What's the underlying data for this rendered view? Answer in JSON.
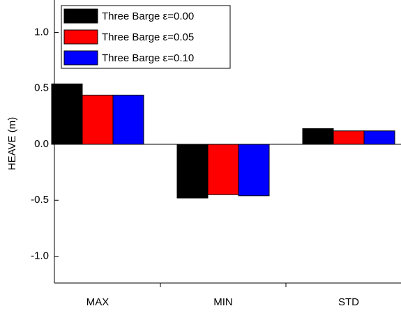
{
  "chart_data": {
    "type": "bar",
    "y_label": "HEAVE (m)",
    "categories": [
      "MAX",
      "MIN",
      "STD"
    ],
    "series": [
      {
        "name": "Three Barge ε=0.00",
        "color": "#000000",
        "values": [
          0.54,
          -0.48,
          0.14
        ]
      },
      {
        "name": "Three Barge ε=0.05",
        "color": "#ff0000",
        "values": [
          0.44,
          -0.45,
          0.12
        ]
      },
      {
        "name": "Three Barge ε=0.10",
        "color": "#0000ff",
        "values": [
          0.44,
          -0.46,
          0.12
        ]
      }
    ],
    "ylim": [
      -1.24,
      1.29
    ],
    "yticks": [
      {
        "value": -1.0,
        "label": "-1.0"
      },
      {
        "value": -0.5,
        "label": "-0.5"
      },
      {
        "value": 0.0,
        "label": "0.0"
      },
      {
        "value": 0.5,
        "label": "0.5"
      },
      {
        "value": 1.0,
        "label": "1.0"
      }
    ],
    "legend": "top-left"
  }
}
